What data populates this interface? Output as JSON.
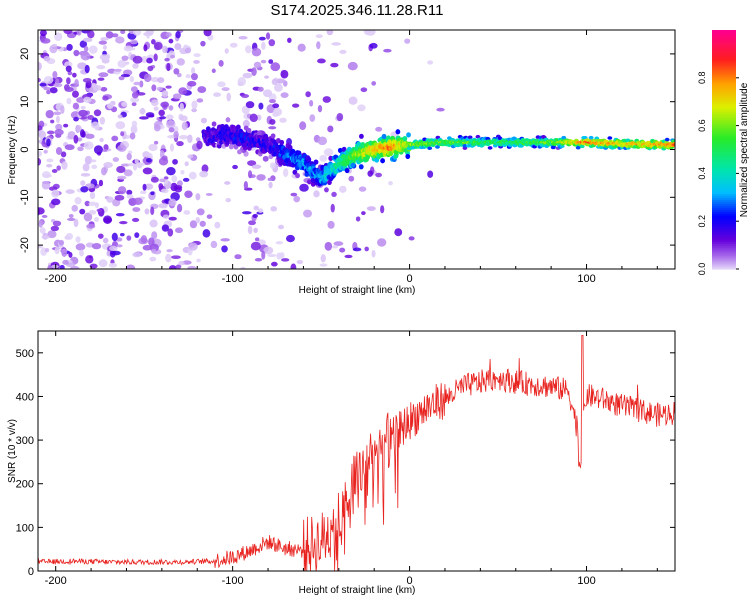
{
  "title": "S174.2025.346.11.28.R11",
  "colors": {
    "snr_line": "#e8231f",
    "background": "#ffffff",
    "axis": "#000000"
  },
  "chart_data": [
    {
      "type": "heatmap",
      "name": "spectrogram",
      "xlabel": "Height of straight line (km)",
      "ylabel": "Frequency (Hz)",
      "xlim": [
        -210,
        150
      ],
      "ylim": [
        -25,
        25
      ],
      "xticks": [
        -200,
        -100,
        0,
        100
      ],
      "yticks": [
        -20,
        -10,
        0,
        10,
        20
      ],
      "colorbar": {
        "label": "Normalized spectral amplitude",
        "range": [
          0,
          1
        ],
        "ticks": [
          "0.0",
          "0.2",
          "0.4",
          "0.6",
          "0.8"
        ],
        "tick_values": [
          0.0,
          0.2,
          0.4,
          0.6,
          0.8
        ]
      },
      "ridge": {
        "description_points_height_km": [
          -115,
          -100,
          -90,
          -80,
          -70,
          -60,
          -50,
          -40,
          -30,
          -20,
          -10,
          0,
          20,
          50,
          80,
          100,
          120,
          150
        ],
        "frequency_hz": [
          3,
          3,
          2,
          1,
          -1,
          -3,
          -6,
          -3,
          -1,
          0,
          0.5,
          1,
          1.5,
          1.5,
          1.5,
          1.5,
          1.2,
          1
        ],
        "amplitude": [
          0.15,
          0.2,
          0.2,
          0.15,
          0.25,
          0.3,
          0.3,
          0.45,
          0.6,
          0.75,
          0.8,
          0.6,
          0.55,
          0.5,
          0.55,
          0.8,
          0.7,
          0.8
        ]
      }
    },
    {
      "type": "line",
      "name": "snr",
      "xlabel": "Height of straight line (km)",
      "ylabel": "SNR (10 * v/v)",
      "xlim": [
        -210,
        150
      ],
      "ylim": [
        0,
        550
      ],
      "xticks": [
        -200,
        -100,
        0,
        100
      ],
      "yticks": [
        0,
        100,
        200,
        300,
        400,
        500
      ],
      "series": [
        {
          "name": "SNR",
          "x": [
            -210,
            -190,
            -170,
            -150,
            -130,
            -110,
            -100,
            -90,
            -80,
            -70,
            -60,
            -50,
            -40,
            -30,
            -20,
            -10,
            0,
            10,
            20,
            30,
            40,
            50,
            60,
            70,
            80,
            90,
            96,
            100,
            110,
            120,
            130,
            140,
            150
          ],
          "values": [
            20,
            22,
            20,
            20,
            20,
            22,
            30,
            45,
            65,
            50,
            45,
            60,
            110,
            210,
            260,
            300,
            340,
            370,
            390,
            420,
            430,
            440,
            430,
            425,
            420,
            410,
            300,
            400,
            390,
            375,
            365,
            355,
            360
          ]
        }
      ]
    }
  ]
}
